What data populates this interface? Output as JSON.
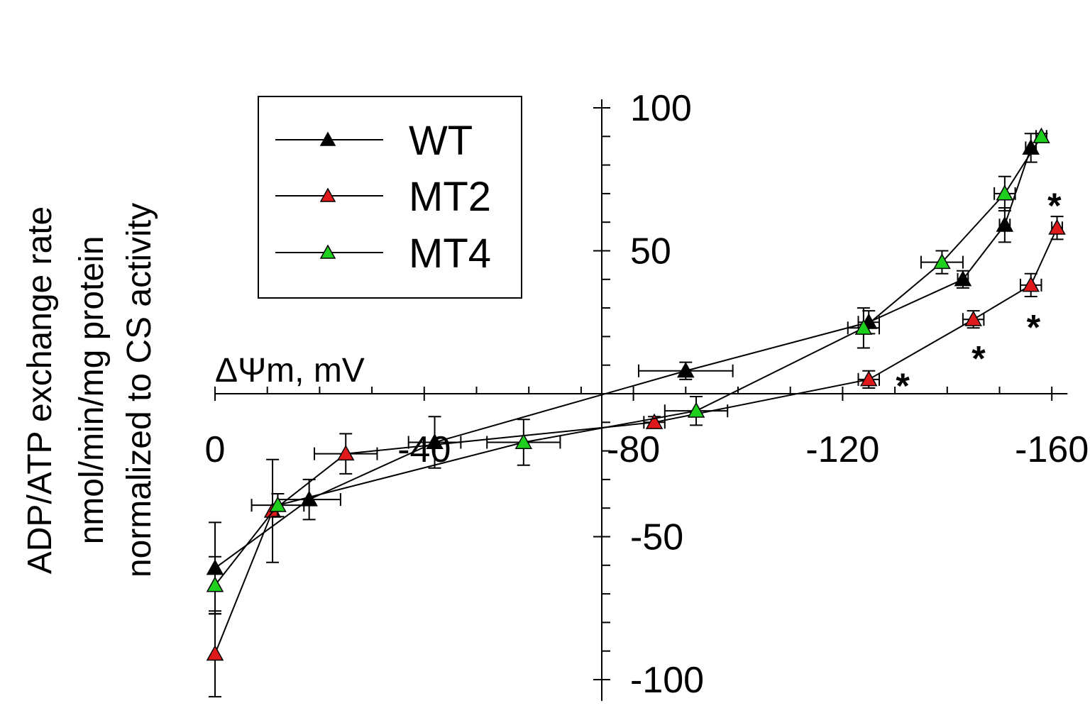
{
  "chart_data": {
    "type": "scatter",
    "title": "",
    "ylabel_lines": [
      "ADP/ATP exchange rate",
      "nmol/min/mg protein",
      "normalized to CS activity"
    ],
    "xlabel": "ΔΨm, mV",
    "xlim": [
      0,
      -163
    ],
    "ylim": [
      -105,
      100
    ],
    "x_ticks": [
      0,
      -40,
      -80,
      -120,
      -160
    ],
    "x_tick_labels": [
      "0",
      "-40",
      "-80",
      "-120",
      "-160"
    ],
    "y_ticks": [
      100,
      50,
      -50,
      -100
    ],
    "y_tick_labels": [
      "100",
      "50",
      "-50",
      "-100"
    ],
    "legend_position": "top-left",
    "series": [
      {
        "name": "WT",
        "color": "#000000",
        "points": [
          {
            "x": 0,
            "y": -61,
            "yerr": 16
          },
          {
            "x": -18,
            "y": -37,
            "yerr": 7,
            "xerr": 6
          },
          {
            "x": -42,
            "y": -17,
            "yerr": 9,
            "xerr": 5
          },
          {
            "x": -90,
            "y": 8,
            "yerr": 3,
            "xerr": 9
          },
          {
            "x": -125,
            "y": 25,
            "yerr": 4,
            "xerr": 2
          },
          {
            "x": -143,
            "y": 40,
            "yerr": 3,
            "xerr": 1
          },
          {
            "x": -151,
            "y": 59,
            "yerr": 6,
            "xerr": 1
          },
          {
            "x": -156,
            "y": 86,
            "yerr": 5,
            "xerr": 1
          }
        ]
      },
      {
        "name": "MT2",
        "color": "#e01a1a",
        "points": [
          {
            "x": 0,
            "y": -91,
            "yerr": 15
          },
          {
            "x": -11,
            "y": -41,
            "yerr": 18
          },
          {
            "x": -25,
            "y": -21,
            "yerr": 7,
            "xerr": 6
          },
          {
            "x": -84,
            "y": -10,
            "yerr": 2,
            "xerr": 2
          },
          {
            "x": -125,
            "y": 5,
            "yerr": 3,
            "xerr": 2
          },
          {
            "x": -145,
            "y": 26,
            "yerr": 3,
            "xerr": 2
          },
          {
            "x": -156,
            "y": 38,
            "yerr": 4,
            "xerr": 2
          },
          {
            "x": -161,
            "y": 58,
            "yerr": 4,
            "xerr": 1
          }
        ]
      },
      {
        "name": "MT4",
        "color": "#1ecf1e",
        "points": [
          {
            "x": 0,
            "y": -67,
            "yerr": 10
          },
          {
            "x": -12,
            "y": -39,
            "yerr": 4,
            "xerr": 5
          },
          {
            "x": -59,
            "y": -17,
            "yerr": 8,
            "xerr": 7
          },
          {
            "x": -92,
            "y": -6,
            "yerr": 5,
            "xerr": 6
          },
          {
            "x": -124,
            "y": 23,
            "yerr": 7,
            "xerr": 3
          },
          {
            "x": -139,
            "y": 46,
            "yerr": 4,
            "xerr": 4
          },
          {
            "x": -151,
            "y": 70,
            "yerr": 6,
            "xerr": 2
          },
          {
            "x": -158,
            "y": 90,
            "yerr": 1,
            "xerr": 1
          }
        ]
      }
    ],
    "annotations": [
      {
        "text": "*",
        "x": -131.5,
        "y": 3
      },
      {
        "text": "*",
        "x": -146,
        "y": 12.5
      },
      {
        "text": "*",
        "x": -156.5,
        "y": 23.5
      },
      {
        "text": "*",
        "x": -160.5,
        "y": 66
      }
    ]
  }
}
